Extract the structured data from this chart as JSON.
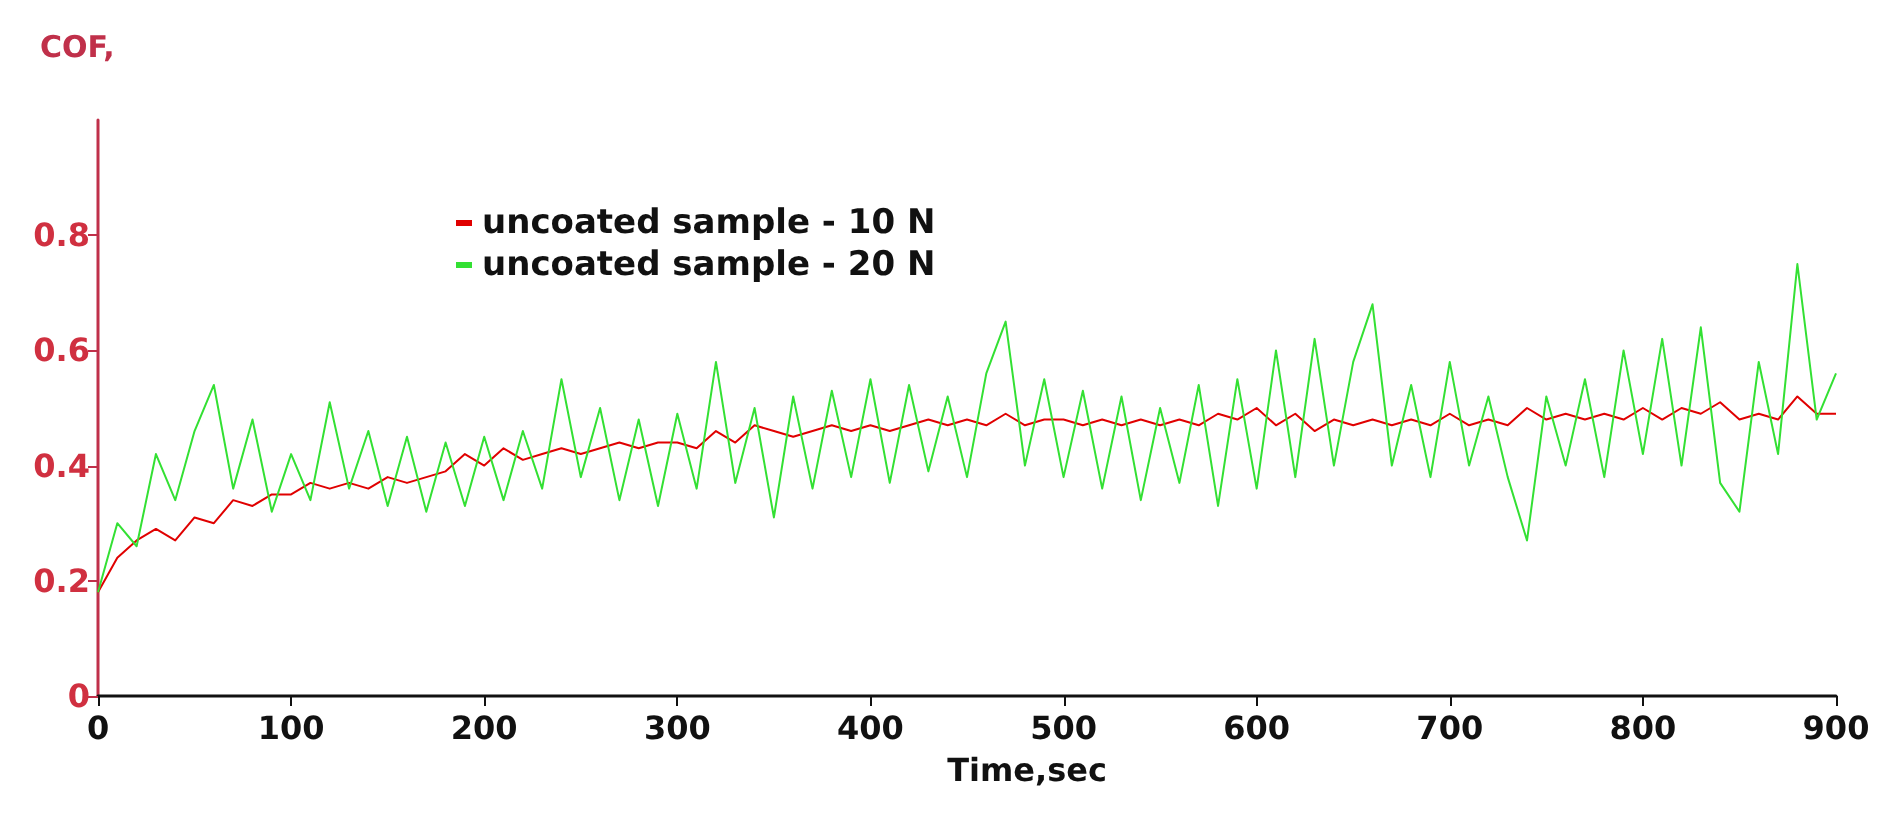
{
  "chart_data": {
    "type": "line",
    "ylabel": "COF,",
    "xlabel": "Time,sec",
    "xlim": [
      0,
      900
    ],
    "xticks": [
      0,
      100,
      200,
      300,
      400,
      500,
      600,
      700,
      800,
      900
    ],
    "ylim": [
      0,
      1
    ],
    "yticks": [
      0,
      0.2,
      0.4,
      0.6,
      0.8
    ],
    "grid": false,
    "legend": "top",
    "marker": "none",
    "line_style": "solid",
    "x": [
      0,
      10,
      20,
      30,
      40,
      50,
      60,
      70,
      80,
      90,
      100,
      110,
      120,
      130,
      140,
      150,
      160,
      170,
      180,
      190,
      200,
      210,
      220,
      230,
      240,
      250,
      260,
      270,
      280,
      290,
      300,
      310,
      320,
      330,
      340,
      350,
      360,
      370,
      380,
      390,
      400,
      410,
      420,
      430,
      440,
      450,
      460,
      470,
      480,
      490,
      500,
      510,
      520,
      530,
      540,
      550,
      560,
      570,
      580,
      590,
      600,
      610,
      620,
      630,
      640,
      650,
      660,
      670,
      680,
      690,
      700,
      710,
      720,
      730,
      740,
      750,
      760,
      770,
      780,
      790,
      800,
      810,
      820,
      830,
      840,
      850,
      860,
      870,
      880,
      890,
      900
    ],
    "series": [
      {
        "name": "uncoated sample - 10 N",
        "color": "#e00000",
        "values": [
          0.18,
          0.24,
          0.27,
          0.29,
          0.27,
          0.31,
          0.3,
          0.34,
          0.33,
          0.35,
          0.35,
          0.37,
          0.36,
          0.37,
          0.36,
          0.38,
          0.37,
          0.38,
          0.39,
          0.42,
          0.4,
          0.43,
          0.41,
          0.42,
          0.43,
          0.42,
          0.43,
          0.44,
          0.43,
          0.44,
          0.44,
          0.43,
          0.46,
          0.44,
          0.47,
          0.46,
          0.45,
          0.46,
          0.47,
          0.46,
          0.47,
          0.46,
          0.47,
          0.48,
          0.47,
          0.48,
          0.47,
          0.49,
          0.47,
          0.48,
          0.48,
          0.47,
          0.48,
          0.47,
          0.48,
          0.47,
          0.48,
          0.47,
          0.49,
          0.48,
          0.5,
          0.47,
          0.49,
          0.46,
          0.48,
          0.47,
          0.48,
          0.47,
          0.48,
          0.47,
          0.49,
          0.47,
          0.48,
          0.47,
          0.5,
          0.48,
          0.49,
          0.48,
          0.49,
          0.48,
          0.5,
          0.48,
          0.5,
          0.49,
          0.51,
          0.48,
          0.49,
          0.48,
          0.52,
          0.49,
          0.49
        ]
      },
      {
        "name": "uncoated sample - 20 N",
        "color": "#33e033",
        "values": [
          0.18,
          0.3,
          0.26,
          0.42,
          0.34,
          0.46,
          0.54,
          0.36,
          0.48,
          0.32,
          0.42,
          0.34,
          0.51,
          0.36,
          0.46,
          0.33,
          0.45,
          0.32,
          0.44,
          0.33,
          0.45,
          0.34,
          0.46,
          0.36,
          0.55,
          0.38,
          0.5,
          0.34,
          0.48,
          0.33,
          0.49,
          0.36,
          0.58,
          0.37,
          0.5,
          0.31,
          0.52,
          0.36,
          0.53,
          0.38,
          0.55,
          0.37,
          0.54,
          0.39,
          0.52,
          0.38,
          0.56,
          0.65,
          0.4,
          0.55,
          0.38,
          0.53,
          0.36,
          0.52,
          0.34,
          0.5,
          0.37,
          0.54,
          0.33,
          0.55,
          0.36,
          0.6,
          0.38,
          0.62,
          0.4,
          0.58,
          0.68,
          0.4,
          0.54,
          0.38,
          0.58,
          0.4,
          0.52,
          0.38,
          0.27,
          0.52,
          0.4,
          0.55,
          0.38,
          0.6,
          0.42,
          0.62,
          0.4,
          0.64,
          0.37,
          0.32,
          0.58,
          0.42,
          0.75,
          0.48,
          0.56
        ]
      }
    ]
  }
}
